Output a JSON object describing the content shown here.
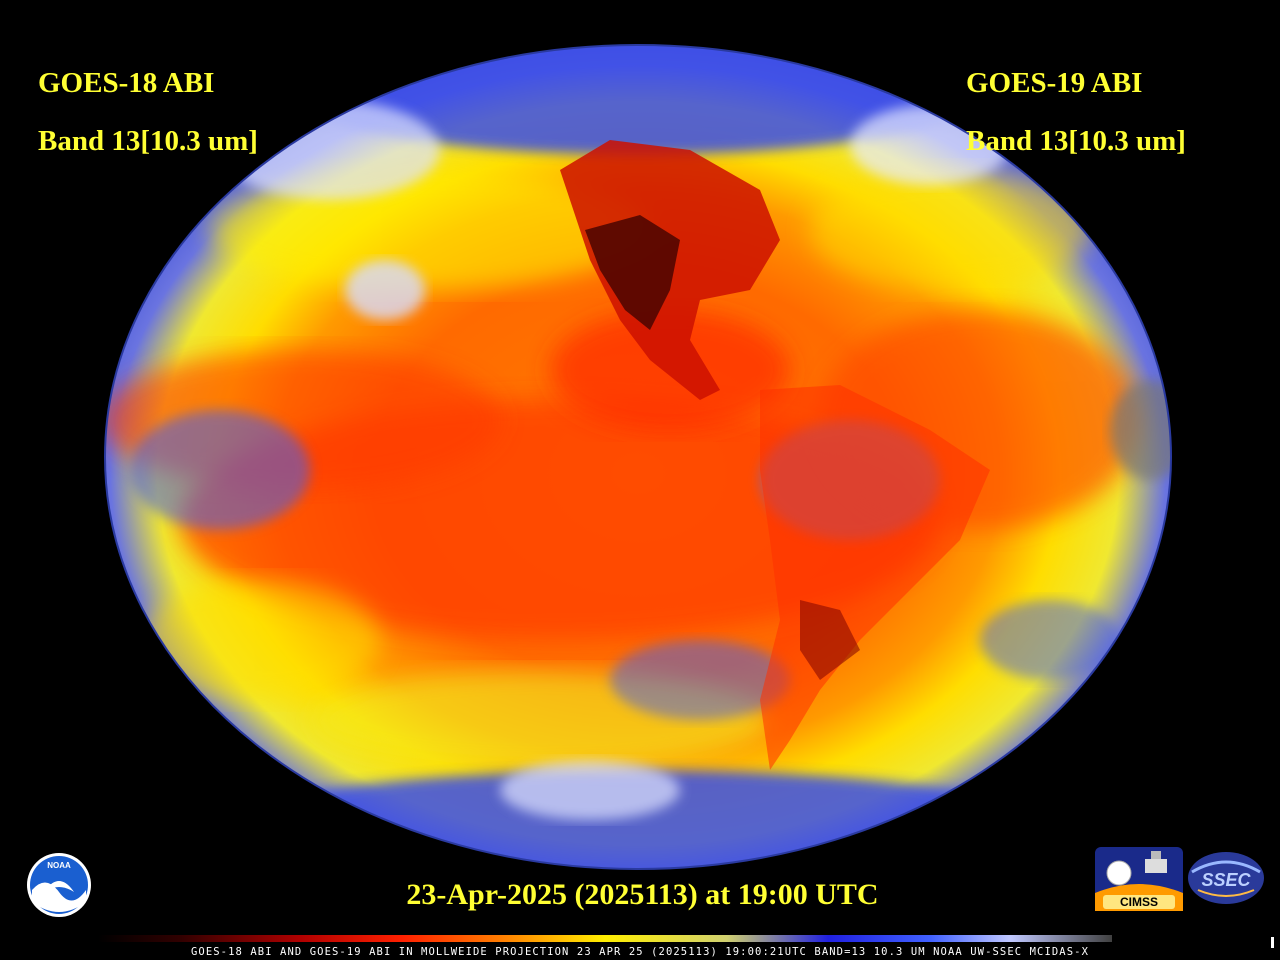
{
  "labels": {
    "left": {
      "satellite": "GOES-18 ABI",
      "band": "Band 13[10.3 um]"
    },
    "right": {
      "satellite": "GOES-19 ABI",
      "band": "Band 13[10.3 um]"
    }
  },
  "timestamp": "23-Apr-2025 (2025113) at 19:00 UTC",
  "footer": "GOES-18 ABI AND GOES-19 ABI IN MOLLWEIDE PROJECTION 23 APR 25 (2025113) 19:00:21UTC BAND=13 10.3 UM NOAA UW-SSEC MCIDAS-X",
  "logos": {
    "noaa": "NOAA",
    "cimss": "CIMSS",
    "ssec": "SSEC"
  },
  "colors": {
    "background": "#000000",
    "label_text": "#ffff33",
    "warm_red": "#ff3a00",
    "orange": "#ff8a00",
    "yellow": "#ffee00",
    "cloud_blue": "#3a4ee8",
    "cloud_white": "#e8e8ff",
    "land_dark": "#5a0a00"
  }
}
